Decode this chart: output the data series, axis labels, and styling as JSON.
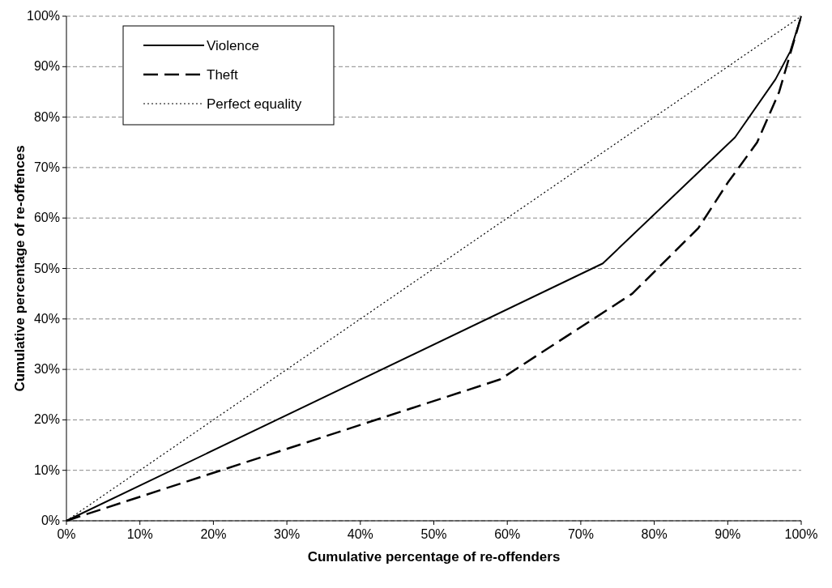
{
  "chart_data": {
    "type": "line",
    "xlabel": "Cumulative percentage of re-offenders",
    "ylabel": "Cumulative percentage of re-offences",
    "xlim": [
      0,
      100
    ],
    "ylim": [
      0,
      100
    ],
    "xticks": [
      {
        "value": 0,
        "label": "0%"
      },
      {
        "value": 10,
        "label": "10%"
      },
      {
        "value": 20,
        "label": "20%"
      },
      {
        "value": 30,
        "label": "30%"
      },
      {
        "value": 40,
        "label": "40%"
      },
      {
        "value": 50,
        "label": "50%"
      },
      {
        "value": 60,
        "label": "60%"
      },
      {
        "value": 70,
        "label": "70%"
      },
      {
        "value": 80,
        "label": "80%"
      },
      {
        "value": 90,
        "label": "90%"
      },
      {
        "value": 100,
        "label": "100%"
      }
    ],
    "yticks": [
      {
        "value": 0,
        "label": "0%"
      },
      {
        "value": 10,
        "label": "10%"
      },
      {
        "value": 20,
        "label": "20%"
      },
      {
        "value": 30,
        "label": "30%"
      },
      {
        "value": 40,
        "label": "40%"
      },
      {
        "value": 50,
        "label": "50%"
      },
      {
        "value": 60,
        "label": "60%"
      },
      {
        "value": 70,
        "label": "70%"
      },
      {
        "value": 80,
        "label": "80%"
      },
      {
        "value": 90,
        "label": "90%"
      },
      {
        "value": 100,
        "label": "100%"
      }
    ],
    "grid": "y",
    "legend": "top left",
    "marker": "none",
    "series": [
      {
        "name": "Violence",
        "color": "#000000",
        "line_style": "solid",
        "x": [
          0,
          73,
          91,
          96.5,
          98.5,
          100
        ],
        "values": [
          0,
          51,
          76,
          87.5,
          93,
          100
        ]
      },
      {
        "name": "Theft",
        "color": "#000000",
        "line_style": "dashed",
        "x": [
          0,
          40,
          59,
          77,
          86,
          90,
          94,
          97,
          100
        ],
        "values": [
          0,
          19,
          28,
          45,
          58,
          67,
          75,
          85,
          100
        ]
      },
      {
        "name": "Perfect equality",
        "color": "#000000",
        "line_style": "dotted",
        "x": [
          0,
          100
        ],
        "values": [
          0,
          100
        ]
      }
    ]
  }
}
